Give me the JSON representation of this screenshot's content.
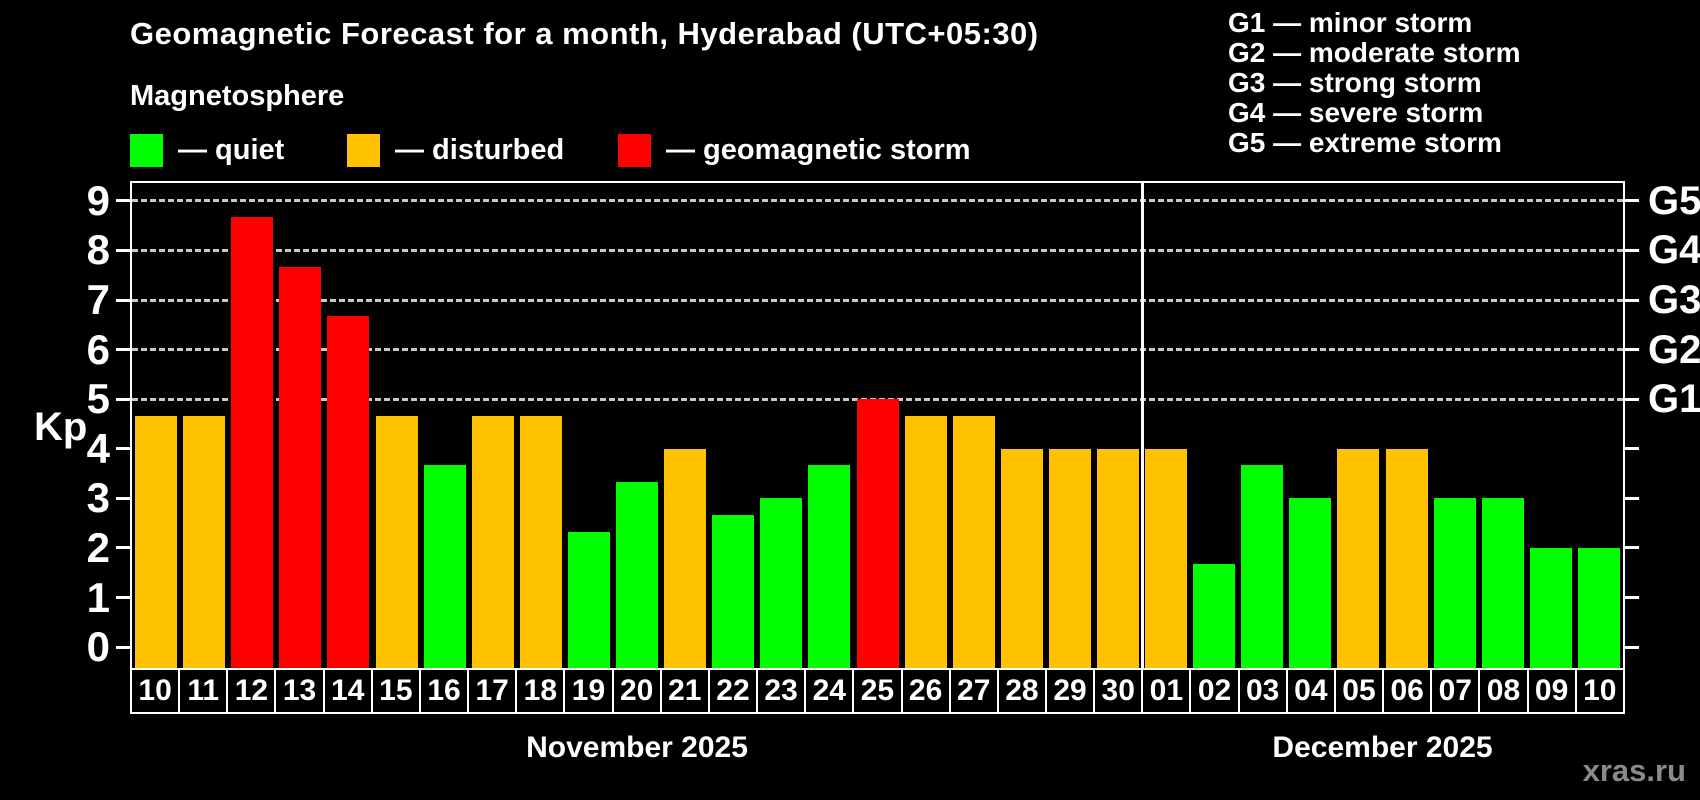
{
  "header": {
    "title": "Geomagnetic Forecast for a month, Hyderabad (UTC+05:30)",
    "subtitle": "Magnetosphere"
  },
  "legend": {
    "items": [
      {
        "key": "quiet",
        "label": "— quiet",
        "color": "#00ff00"
      },
      {
        "key": "disturbed",
        "label": "— disturbed",
        "color": "#ffc200"
      },
      {
        "key": "storm",
        "label": "— geomagnetic storm",
        "color": "#ff0000"
      }
    ]
  },
  "g_legend": {
    "items": [
      "G1 — minor storm",
      "G2 — moderate storm",
      "G3 — strong storm",
      "G4 — severe storm",
      "G5 — extreme storm"
    ]
  },
  "watermark": "xras.ru",
  "chart_data": {
    "type": "bar",
    "title": "Geomagnetic Forecast for a month, Hyderabad (UTC+05:30)",
    "subtitle": "Magnetosphere",
    "ylabel": "Kp",
    "xlabel": "",
    "y_ticks": [
      0,
      1,
      2,
      3,
      4,
      5,
      6,
      7,
      8,
      9
    ],
    "ylim": [
      -0.42,
      9.36
    ],
    "grid": "dashed horizontal gridlines at Kp 5,6,7,8,9 only",
    "legend_position": "top-left",
    "colors": {
      "quiet": "#00ff00",
      "disturbed": "#ffc200",
      "storm": "#ff0000"
    },
    "g_levels": [
      {
        "kp": 5,
        "label": "G1"
      },
      {
        "kp": 6,
        "label": "G2"
      },
      {
        "kp": 7,
        "label": "G3"
      },
      {
        "kp": 8,
        "label": "G4"
      },
      {
        "kp": 9,
        "label": "G5"
      }
    ],
    "months": [
      {
        "label": "November 2025",
        "days": 21
      },
      {
        "label": "December 2025",
        "days": 10
      }
    ],
    "bars": [
      {
        "day": "10",
        "month": "November 2025",
        "value": 4.67,
        "status": "disturbed"
      },
      {
        "day": "11",
        "month": "November 2025",
        "value": 4.67,
        "status": "disturbed"
      },
      {
        "day": "12",
        "month": "November 2025",
        "value": 8.67,
        "status": "storm"
      },
      {
        "day": "13",
        "month": "November 2025",
        "value": 7.67,
        "status": "storm"
      },
      {
        "day": "14",
        "month": "November 2025",
        "value": 6.67,
        "status": "storm"
      },
      {
        "day": "15",
        "month": "November 2025",
        "value": 4.67,
        "status": "disturbed"
      },
      {
        "day": "16",
        "month": "November 2025",
        "value": 3.67,
        "status": "quiet"
      },
      {
        "day": "17",
        "month": "November 2025",
        "value": 4.67,
        "status": "disturbed"
      },
      {
        "day": "18",
        "month": "November 2025",
        "value": 4.67,
        "status": "disturbed"
      },
      {
        "day": "19",
        "month": "November 2025",
        "value": 2.33,
        "status": "quiet"
      },
      {
        "day": "20",
        "month": "November 2025",
        "value": 3.33,
        "status": "quiet"
      },
      {
        "day": "21",
        "month": "November 2025",
        "value": 4.0,
        "status": "disturbed"
      },
      {
        "day": "22",
        "month": "November 2025",
        "value": 2.67,
        "status": "quiet"
      },
      {
        "day": "23",
        "month": "November 2025",
        "value": 3.0,
        "status": "quiet"
      },
      {
        "day": "24",
        "month": "November 2025",
        "value": 3.67,
        "status": "quiet"
      },
      {
        "day": "25",
        "month": "November 2025",
        "value": 5.0,
        "status": "storm"
      },
      {
        "day": "26",
        "month": "November 2025",
        "value": 4.67,
        "status": "disturbed"
      },
      {
        "day": "27",
        "month": "November 2025",
        "value": 4.67,
        "status": "disturbed"
      },
      {
        "day": "28",
        "month": "November 2025",
        "value": 4.0,
        "status": "disturbed"
      },
      {
        "day": "29",
        "month": "November 2025",
        "value": 4.0,
        "status": "disturbed"
      },
      {
        "day": "30",
        "month": "November 2025",
        "value": 4.0,
        "status": "disturbed"
      },
      {
        "day": "01",
        "month": "December 2025",
        "value": 4.0,
        "status": "disturbed"
      },
      {
        "day": "02",
        "month": "December 2025",
        "value": 1.67,
        "status": "quiet"
      },
      {
        "day": "03",
        "month": "December 2025",
        "value": 3.67,
        "status": "quiet"
      },
      {
        "day": "04",
        "month": "December 2025",
        "value": 3.0,
        "status": "quiet"
      },
      {
        "day": "05",
        "month": "December 2025",
        "value": 4.0,
        "status": "disturbed"
      },
      {
        "day": "06",
        "month": "December 2025",
        "value": 4.0,
        "status": "disturbed"
      },
      {
        "day": "07",
        "month": "December 2025",
        "value": 3.0,
        "status": "quiet"
      },
      {
        "day": "08",
        "month": "December 2025",
        "value": 3.0,
        "status": "quiet"
      },
      {
        "day": "09",
        "month": "December 2025",
        "value": 2.0,
        "status": "quiet"
      },
      {
        "day": "10",
        "month": "December 2025",
        "value": 2.0,
        "status": "quiet"
      }
    ]
  }
}
